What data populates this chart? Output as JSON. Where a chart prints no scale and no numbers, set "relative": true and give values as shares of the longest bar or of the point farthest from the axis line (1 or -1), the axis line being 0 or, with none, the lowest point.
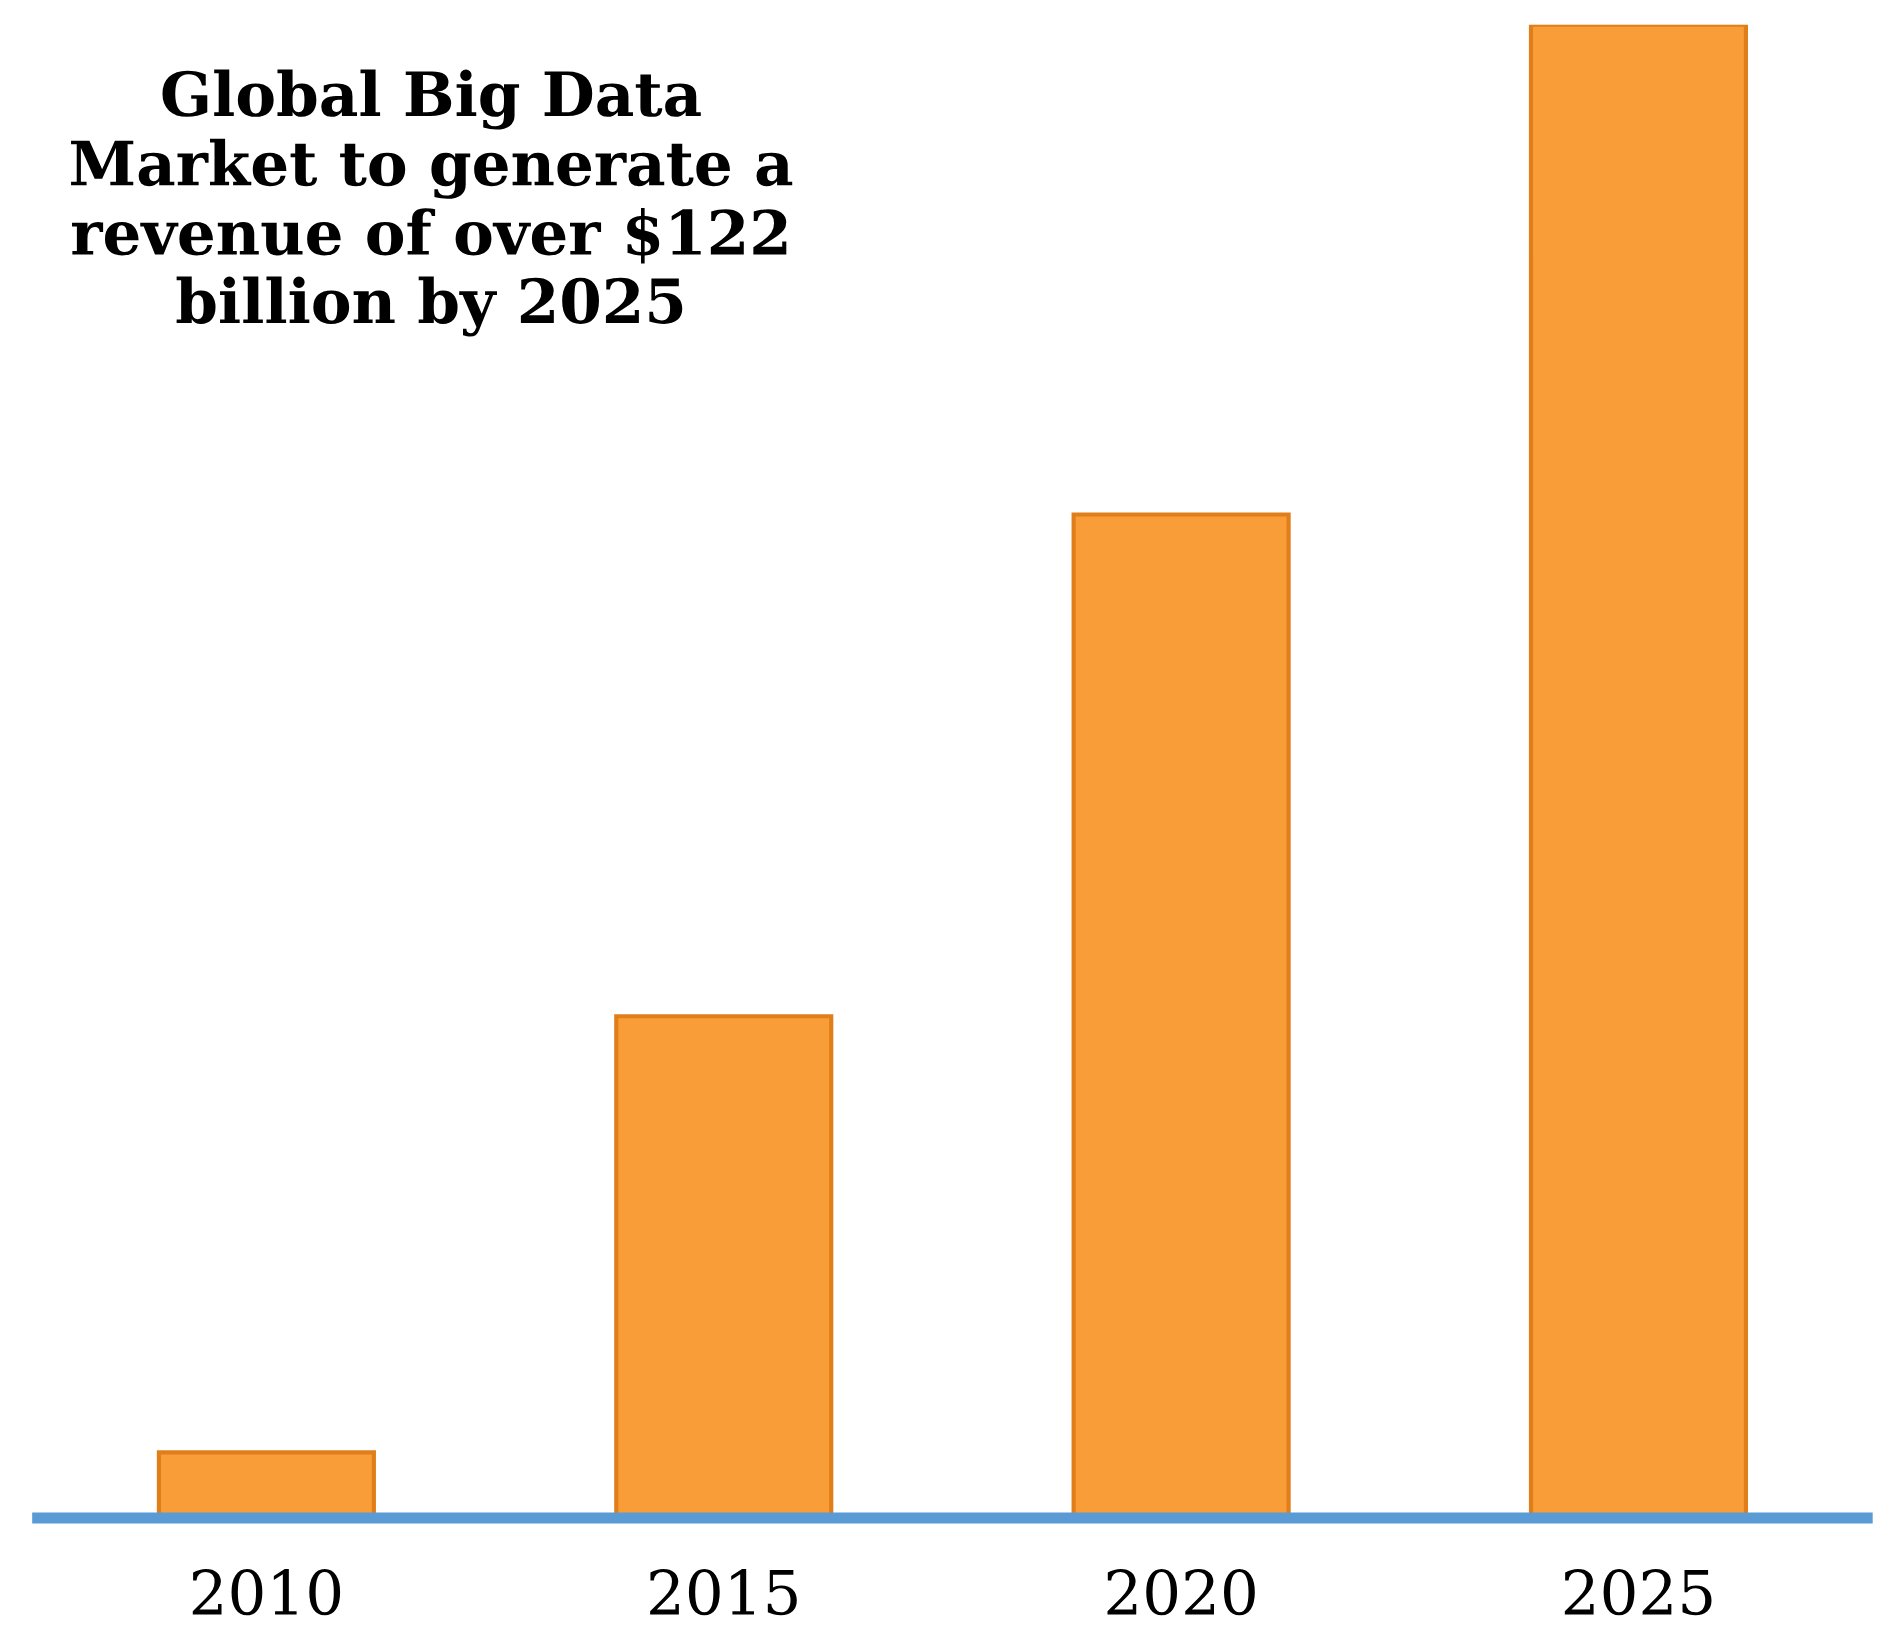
{
  "chart_data": {
    "type": "bar",
    "title": "Global Big Data\nMarket to generate a\nrevenue of over $122\nbillion by 2025",
    "categories": [
      "2010",
      "2015",
      "2020",
      "2025"
    ],
    "values": [
      0.044,
      0.336,
      0.672,
      1
    ],
    "color": "#f99d38",
    "relative": true,
    "grid": false,
    "legend": false
  }
}
